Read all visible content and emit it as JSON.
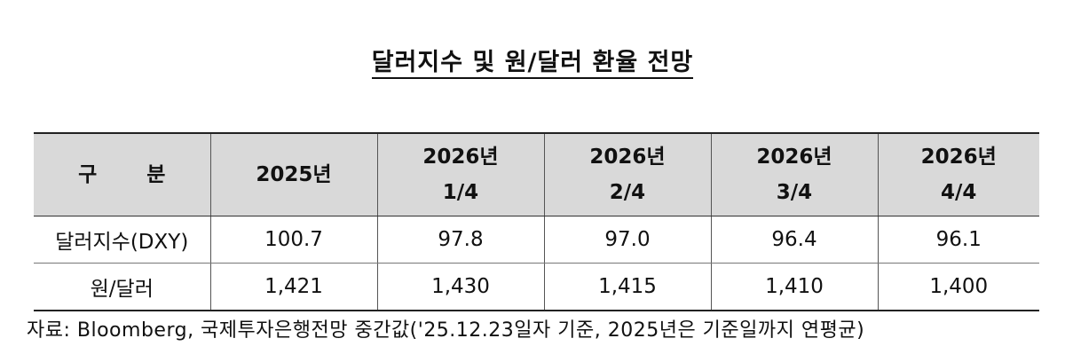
{
  "title": "달러지수 및 원/달러 환율 전망",
  "table": {
    "header": {
      "category": "구 분",
      "col_2025": "2025년",
      "q1_year": "2026년",
      "q1_period": "1/4",
      "q2_year": "2026년",
      "q2_period": "2/4",
      "q3_year": "2026년",
      "q3_period": "3/4",
      "q4_year": "2026년",
      "q4_period": "4/4"
    },
    "rows": [
      {
        "label": "달러지수(DXY)",
        "v2025": "100.7",
        "q1": "97.8",
        "q2": "97.0",
        "q3": "96.4",
        "q4": "96.1"
      },
      {
        "label": "원/달러",
        "v2025": "1,421",
        "q1": "1,430",
        "q2": "1,415",
        "q3": "1,410",
        "q4": "1,400"
      }
    ]
  },
  "source": "자료: Bloomberg, 국제투자은행전망 중간값('25.12.23일자 기준, 2025년은 기준일까지 연평균)"
}
